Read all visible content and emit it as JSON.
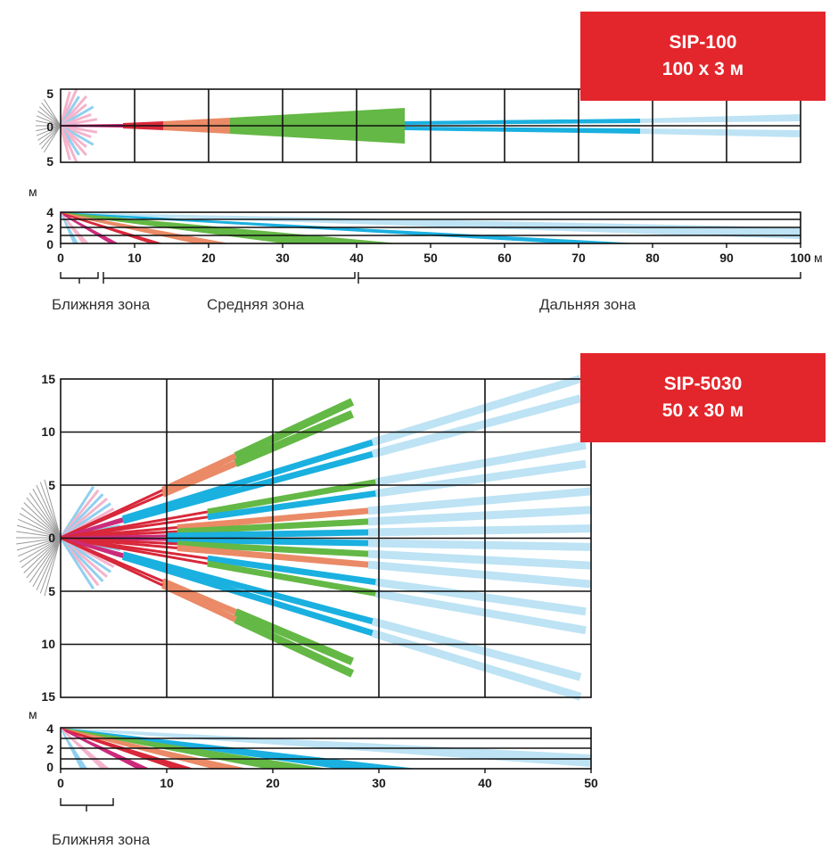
{
  "colors": {
    "near_light": "#f4b4cc",
    "near_blue": "#8fd0ee",
    "near_gray": "#9a9a9a",
    "magenta": "#cc2a7a",
    "red": "#d8283a",
    "orange": "#ea8a66",
    "green": "#64b845",
    "blue": "#1ab0e0",
    "light_blue": "#bde3f4",
    "badge": "#e3262c"
  },
  "sip100": {
    "title": "SIP-100",
    "subtitle": "100 х 3 м",
    "top_view": {
      "x_range": [
        0,
        100
      ],
      "y_range": [
        -5,
        5
      ],
      "y_ticks": [
        "5",
        "0",
        "5"
      ]
    },
    "side_view": {
      "y_unit": "м",
      "y_ticks": [
        "4",
        "2",
        "0"
      ],
      "x_ticks": [
        "0",
        "10",
        "20",
        "30",
        "40",
        "50",
        "60",
        "70",
        "80",
        "90",
        "100"
      ],
      "x_unit": "м"
    },
    "zones": {
      "near": "Ближняя зона",
      "middle": "Средняя зона",
      "far": "Дальняя зона"
    }
  },
  "sip5030": {
    "title": "SIP-5030",
    "subtitle": "50 х 30 м",
    "top_view": {
      "x_range": [
        0,
        50
      ],
      "y_range": [
        -15,
        15
      ],
      "y_ticks": [
        "15",
        "10",
        "5",
        "0",
        "5",
        "10",
        "15"
      ]
    },
    "side_view": {
      "y_unit": "м",
      "y_ticks": [
        "4",
        "2",
        "0"
      ],
      "x_ticks": [
        "0",
        "10",
        "20",
        "30",
        "40",
        "50"
      ]
    },
    "zones": {
      "near": "Ближняя зона"
    }
  }
}
